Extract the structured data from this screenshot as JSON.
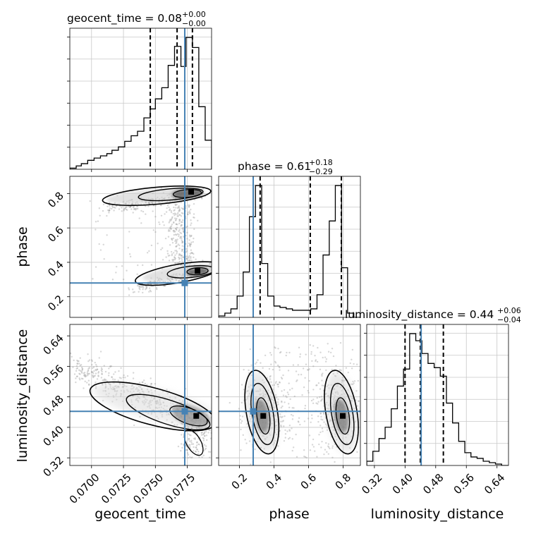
{
  "chart_data": {
    "type": "corner",
    "parameters": [
      "geocent_time",
      "phase",
      "luminosity_distance"
    ],
    "injection": {
      "geocent_time": 0.0773,
      "phase": 0.28,
      "luminosity_distance": 0.442
    },
    "ranges": {
      "geocent_time": [
        0.0683,
        0.0794
      ],
      "phase": [
        0.08,
        0.9
      ],
      "luminosity_distance": [
        0.3,
        0.67
      ]
    },
    "marginals": [
      {
        "parameter": "geocent_time",
        "title": "geocent_time = 0.08",
        "title_sup": "+0.00",
        "title_sub": "−0.00",
        "quantiles": [
          0.0746,
          0.0767,
          0.0779
        ],
        "bin_edges": [
          0.0683,
          0.0688,
          0.0692,
          0.0697,
          0.0702,
          0.0707,
          0.0712,
          0.0716,
          0.0721,
          0.0726,
          0.0731,
          0.0736,
          0.0741,
          0.0746,
          0.075,
          0.0755,
          0.076,
          0.0765,
          0.077,
          0.0774,
          0.0779,
          0.0784,
          0.0789,
          0.0794
        ],
        "counts": [
          1,
          3,
          5,
          8,
          10,
          12,
          14,
          17,
          20,
          25,
          30,
          34,
          46,
          54,
          63,
          73,
          93,
          110,
          92,
          118,
          109,
          56,
          26
        ]
      },
      {
        "parameter": "phase",
        "title": "phase = 0.61",
        "title_sup": "+0.18",
        "title_sub": "−0.29",
        "quantiles": [
          0.32,
          0.61,
          0.79
        ],
        "bin_edges": [
          0.08,
          0.116,
          0.151,
          0.187,
          0.222,
          0.258,
          0.293,
          0.329,
          0.364,
          0.4,
          0.435,
          0.471,
          0.507,
          0.542,
          0.578,
          0.613,
          0.649,
          0.684,
          0.72,
          0.755,
          0.791,
          0.826,
          0.862,
          0.9
        ],
        "counts": [
          1,
          3,
          6,
          15,
          32,
          71,
          93,
          38,
          15,
          8,
          7,
          6,
          5,
          5,
          5,
          6,
          16,
          44,
          68,
          93,
          35,
          3,
          0
        ]
      },
      {
        "parameter": "luminosity_distance",
        "title": "luminosity_distance = 0.44",
        "title_sup": "+0.06",
        "title_sub": "−0.04",
        "quantiles": [
          0.4,
          0.44,
          0.5
        ],
        "bin_edges": [
          0.3,
          0.316,
          0.332,
          0.348,
          0.364,
          0.38,
          0.396,
          0.412,
          0.428,
          0.444,
          0.46,
          0.476,
          0.492,
          0.508,
          0.524,
          0.54,
          0.556,
          0.572,
          0.588,
          0.604,
          0.62,
          0.636,
          0.652,
          0.67
        ],
        "counts": [
          3,
          10,
          19,
          27,
          40,
          56,
          68,
          93,
          88,
          79,
          72,
          69,
          63,
          44,
          30,
          17,
          9,
          6,
          5,
          3,
          2,
          1,
          0
        ]
      }
    ],
    "pair_plots": [
      {
        "x": "geocent_time",
        "y": "phase",
        "mode_regions": [
          {
            "x": [
              0.0714,
              0.0786
            ],
            "y_center": 0.79,
            "peak": [
              0.0776,
              0.81
            ]
          },
          {
            "x": [
              0.0736,
              0.0794
            ],
            "y_center": 0.36,
            "peak": [
              0.0783,
              0.35
            ]
          }
        ]
      },
      {
        "x": "geocent_time",
        "y": "luminosity_distance",
        "mode_regions": [
          {
            "x": [
              0.0702,
              0.0794
            ],
            "y": [
              0.36,
              0.52
            ],
            "peak": [
              0.0782,
              0.43
            ]
          }
        ]
      },
      {
        "x": "phase",
        "y": "luminosity_distance",
        "mode_regions": [
          {
            "x": [
              0.27,
              0.4
            ],
            "y": [
              0.35,
              0.52
            ],
            "peak": [
              0.34,
              0.43
            ]
          },
          {
            "x": [
              0.72,
              0.86
            ],
            "y": [
              0.34,
              0.52
            ],
            "peak": [
              0.79,
              0.43
            ]
          }
        ]
      }
    ],
    "ticks": {
      "geocent_time_x": [
        "0.0700",
        "0.0725",
        "0.0750",
        "0.0775"
      ],
      "phase_x": [
        "0.2",
        "0.4",
        "0.6",
        "0.8"
      ],
      "luminosity_distance_x": [
        "0.32",
        "0.40",
        "0.48",
        "0.56",
        "0.64"
      ],
      "phase_y": [
        "0.2",
        "0.4",
        "0.6",
        "0.8"
      ],
      "luminosity_distance_y": [
        "0.32",
        "0.40",
        "0.48",
        "0.56",
        "0.64"
      ]
    },
    "axis_labels": {
      "x": [
        "geocent_time",
        "phase",
        "luminosity_distance"
      ],
      "y": [
        "phase",
        "luminosity_distance"
      ]
    },
    "grid": true,
    "colors": {
      "truth": "#4682b4",
      "hist": "#000000",
      "grid": "#c8c8c8",
      "samples": "#8c8c8c"
    }
  }
}
